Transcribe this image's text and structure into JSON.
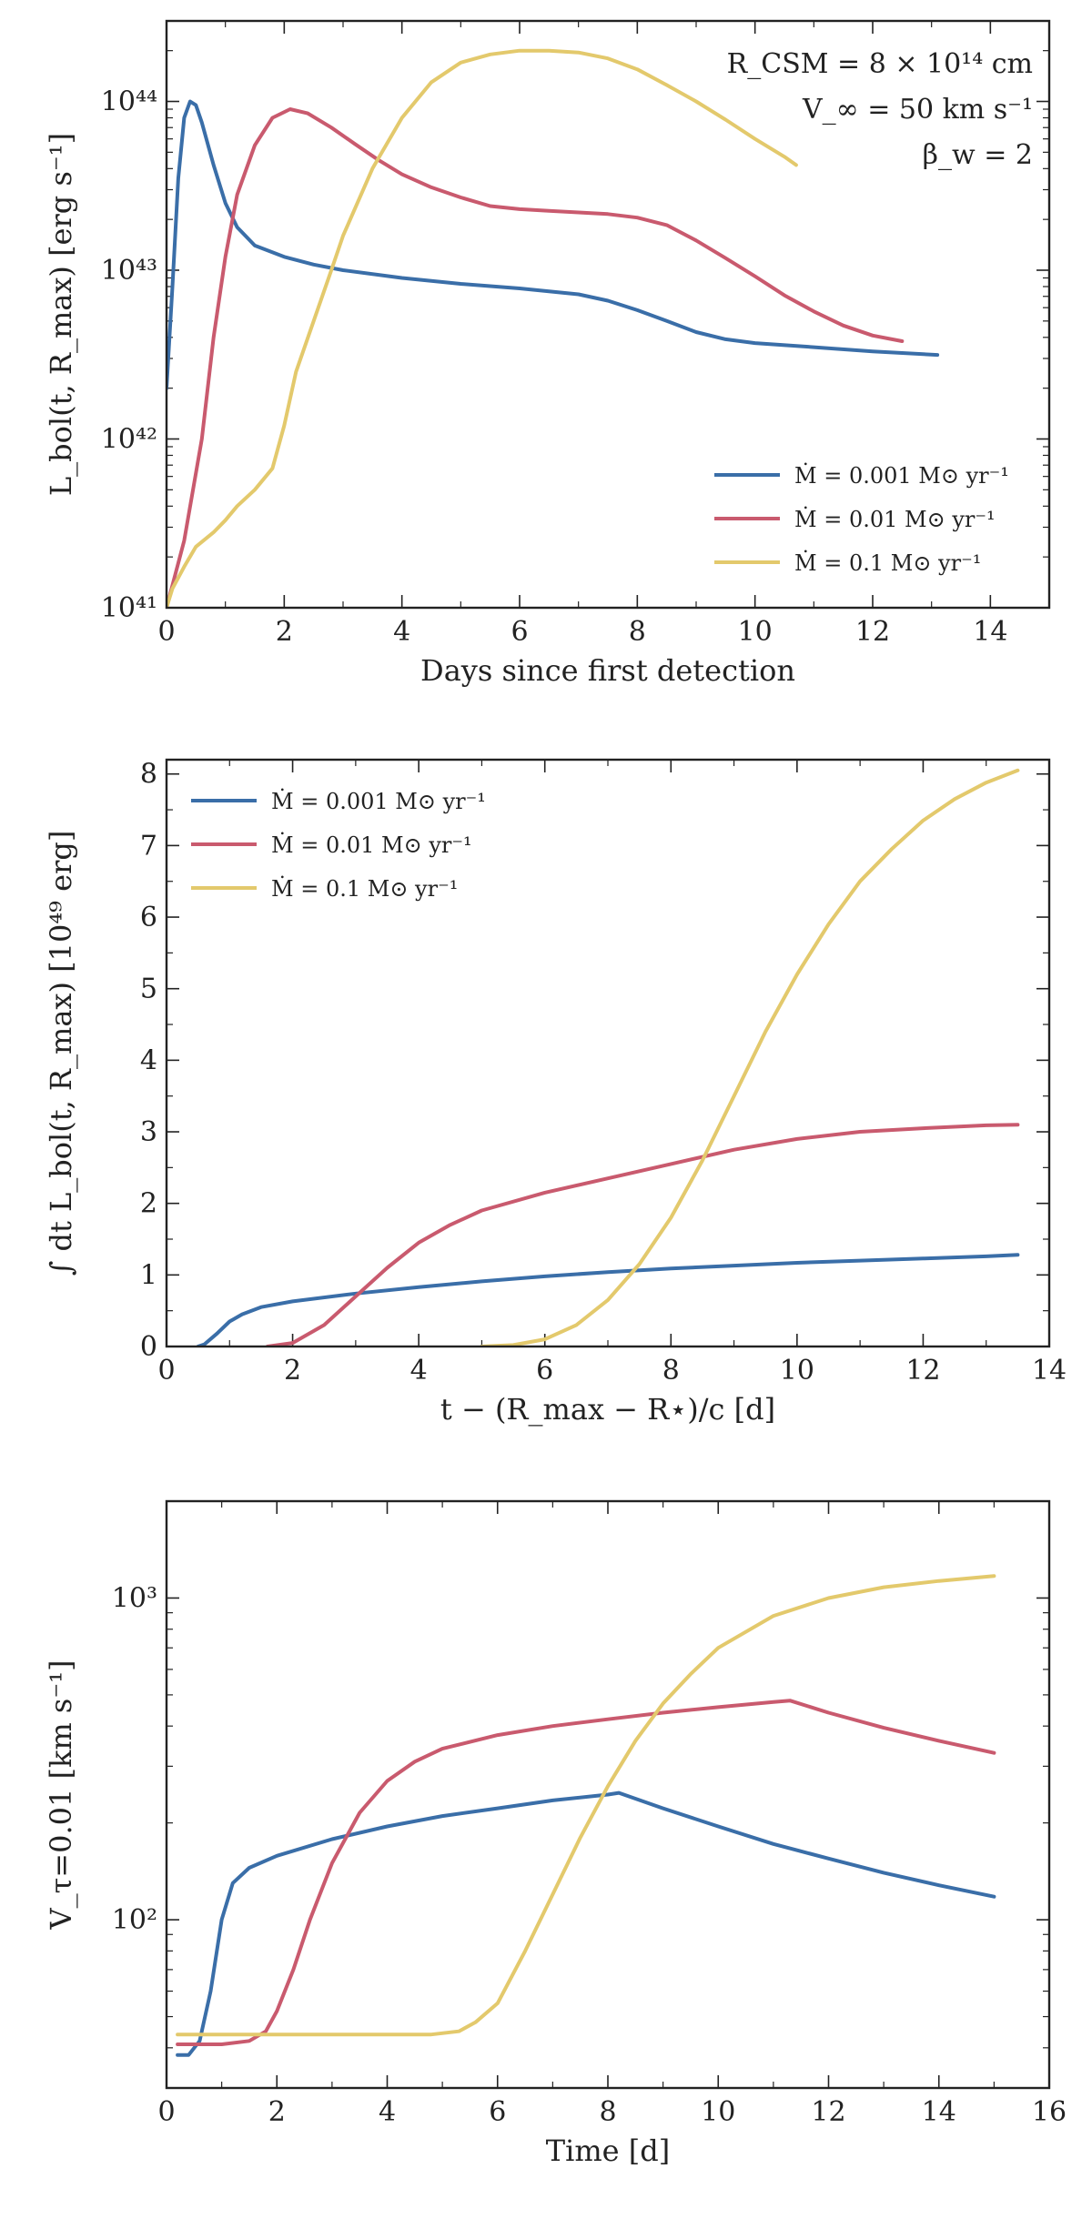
{
  "chart_data": [
    {
      "type": "line",
      "yscale": "log",
      "xlabel": "Days since first detection",
      "ylabel": "L_bol(t, R_max) [erg s⁻¹]",
      "xlim": [
        0,
        15
      ],
      "ylim": [
        1e+41,
        3e+44
      ],
      "xticks": [
        0,
        2,
        4,
        6,
        8,
        10,
        12,
        14
      ],
      "xtick_labels": [
        "0",
        "2",
        "4",
        "6",
        "8",
        "10",
        "12",
        "14"
      ],
      "yticks": [
        1e+41,
        1e+42,
        1e+43,
        1e+44
      ],
      "ytick_labels": [
        "10⁴¹",
        "10⁴²",
        "10⁴³",
        "10⁴⁴"
      ],
      "legend_position": "lower-right",
      "annotations": [
        "R_CSM = 8 × 10¹⁴ cm",
        "V_∞ = 50 km s⁻¹",
        "β_w = 2"
      ],
      "series": [
        {
          "name": "Ṁ = 0.001 M⊙ yr⁻¹",
          "color": "#3a6ea8",
          "x": [
            0,
            0.1,
            0.2,
            0.3,
            0.4,
            0.5,
            0.6,
            0.8,
            1.0,
            1.2,
            1.5,
            2.0,
            2.5,
            3.0,
            4.0,
            5.0,
            6.0,
            7.0,
            7.5,
            8.0,
            8.5,
            9.0,
            9.5,
            10.0,
            11.0,
            12.0,
            13.1
          ],
          "y": [
            2e+42,
            8e+42,
            3.5e+43,
            8e+43,
            1e+44,
            9.5e+43,
            7.5e+43,
            4.2e+43,
            2.5e+43,
            1.8e+43,
            1.4e+43,
            1.2e+43,
            1.08e+43,
            1e+43,
            9e+42,
            8.3e+42,
            7.8e+42,
            7.2e+42,
            6.6e+42,
            5.8e+42,
            5e+42,
            4.3e+42,
            3.9e+42,
            3.7e+42,
            3.5e+42,
            3.3e+42,
            3.15e+42
          ]
        },
        {
          "name": "Ṁ = 0.01 M⊙ yr⁻¹",
          "color": "#c95a6e",
          "x": [
            0,
            0.3,
            0.6,
            0.8,
            1.0,
            1.2,
            1.5,
            1.8,
            2.1,
            2.4,
            2.8,
            3.2,
            3.6,
            4.0,
            4.5,
            5.0,
            5.5,
            6.0,
            6.5,
            7.0,
            7.5,
            8.0,
            8.5,
            9.0,
            9.5,
            10.0,
            10.5,
            11.0,
            11.5,
            12.0,
            12.5
          ],
          "y": [
            1e+41,
            2.5e+41,
            1e+42,
            4e+42,
            1.2e+43,
            2.8e+43,
            5.5e+43,
            8e+43,
            9e+43,
            8.5e+43,
            7e+43,
            5.6e+43,
            4.5e+43,
            3.7e+43,
            3.1e+43,
            2.7e+43,
            2.4e+43,
            2.3e+43,
            2.25e+43,
            2.2e+43,
            2.15e+43,
            2.05e+43,
            1.85e+43,
            1.5e+43,
            1.18e+43,
            9.2e+42,
            7.1e+42,
            5.7e+42,
            4.7e+42,
            4.1e+42,
            3.8e+42
          ]
        },
        {
          "name": "Ṁ = 0.1 M⊙ yr⁻¹",
          "color": "#e3c96c",
          "x": [
            0,
            0.1,
            0.3,
            0.5,
            0.8,
            1.0,
            1.2,
            1.5,
            1.8,
            2.0,
            2.2,
            2.5,
            2.8,
            3.0,
            3.5,
            4.0,
            4.5,
            5.0,
            5.5,
            6.0,
            6.5,
            7.0,
            7.5,
            8.0,
            8.5,
            9.0,
            9.5,
            10.0,
            10.5,
            10.7
          ],
          "y": [
            1e+41,
            1.3e+41,
            1.75e+41,
            2.3e+41,
            2.8e+41,
            3.3e+41,
            4e+41,
            5e+41,
            6.7e+41,
            1.2e+42,
            2.5e+42,
            5e+42,
            1e+43,
            1.6e+43,
            4e+43,
            8e+43,
            1.3e+44,
            1.7e+44,
            1.9e+44,
            2e+44,
            2e+44,
            1.95e+44,
            1.8e+44,
            1.55e+44,
            1.25e+44,
            1e+44,
            7.8e+43,
            6e+43,
            4.7e+43,
            4.2e+43
          ]
        }
      ]
    },
    {
      "type": "line",
      "yscale": "linear",
      "xlabel": "t − (R_max − R⋆)/c [d]",
      "ylabel": "∫ dt L_bol(t, R_max) [10⁴⁹ erg]",
      "xlim": [
        0,
        14
      ],
      "ylim": [
        0,
        8.2
      ],
      "xticks": [
        0,
        2,
        4,
        6,
        8,
        10,
        12,
        14
      ],
      "xtick_labels": [
        "0",
        "2",
        "4",
        "6",
        "8",
        "10",
        "12",
        "14"
      ],
      "yticks": [
        0,
        1,
        2,
        3,
        4,
        5,
        6,
        7,
        8
      ],
      "ytick_labels": [
        "0",
        "1",
        "2",
        "3",
        "4",
        "5",
        "6",
        "7",
        "8"
      ],
      "legend_position": "top-left",
      "series": [
        {
          "name": "Ṁ = 0.001 M⊙ yr⁻¹",
          "color": "#3a6ea8",
          "x": [
            0.5,
            0.6,
            0.8,
            1.0,
            1.2,
            1.5,
            2.0,
            3.0,
            4.0,
            5.0,
            6.0,
            7.0,
            8.0,
            9.0,
            10.0,
            11.0,
            12.0,
            13.0,
            13.5
          ],
          "y": [
            0,
            0.03,
            0.18,
            0.35,
            0.45,
            0.55,
            0.63,
            0.74,
            0.83,
            0.91,
            0.98,
            1.04,
            1.09,
            1.13,
            1.17,
            1.2,
            1.23,
            1.26,
            1.28
          ]
        },
        {
          "name": "Ṁ = 0.01 M⊙ yr⁻¹",
          "color": "#c95a6e",
          "x": [
            1.6,
            2.0,
            2.5,
            3.0,
            3.5,
            4.0,
            4.5,
            5.0,
            6.0,
            7.0,
            8.0,
            9.0,
            10.0,
            11.0,
            12.0,
            13.0,
            13.5
          ],
          "y": [
            0,
            0.05,
            0.3,
            0.7,
            1.1,
            1.45,
            1.7,
            1.9,
            2.15,
            2.35,
            2.55,
            2.75,
            2.9,
            3.0,
            3.05,
            3.09,
            3.1
          ]
        },
        {
          "name": "Ṁ = 0.1 M⊙ yr⁻¹",
          "color": "#e3c96c",
          "x": [
            5.0,
            5.5,
            6.0,
            6.5,
            7.0,
            7.5,
            8.0,
            8.5,
            9.0,
            9.5,
            10.0,
            10.5,
            11.0,
            11.5,
            12.0,
            12.5,
            13.0,
            13.5
          ],
          "y": [
            0,
            0.02,
            0.1,
            0.3,
            0.65,
            1.15,
            1.8,
            2.6,
            3.5,
            4.4,
            5.2,
            5.9,
            6.5,
            6.95,
            7.35,
            7.65,
            7.88,
            8.05
          ]
        }
      ]
    },
    {
      "type": "line",
      "yscale": "log",
      "xlabel": "Time [d]",
      "ylabel": "V_τ=0.01 [km s⁻¹]",
      "xlim": [
        0,
        16
      ],
      "ylim": [
        30,
        2000
      ],
      "xticks": [
        0,
        2,
        4,
        6,
        8,
        10,
        12,
        14,
        16
      ],
      "xtick_labels": [
        "0",
        "2",
        "4",
        "6",
        "8",
        "10",
        "12",
        "14",
        "16"
      ],
      "yticks": [
        100,
        1000
      ],
      "ytick_labels": [
        "10²",
        "10³"
      ],
      "series": [
        {
          "name": "Ṁ = 0.001 M⊙ yr⁻¹",
          "color": "#3a6ea8",
          "x": [
            0.2,
            0.4,
            0.6,
            0.8,
            1.0,
            1.2,
            1.5,
            2.0,
            3.0,
            4.0,
            5.0,
            6.0,
            7.0,
            8.0,
            8.2,
            9.0,
            10.0,
            11.0,
            12.0,
            13.0,
            14.0,
            15.0
          ],
          "y": [
            38,
            38,
            42,
            60,
            100,
            130,
            145,
            158,
            178,
            195,
            210,
            222,
            235,
            245,
            248,
            222,
            195,
            172,
            155,
            140,
            128,
            118
          ]
        },
        {
          "name": "Ṁ = 0.01 M⊙ yr⁻¹",
          "color": "#c95a6e",
          "x": [
            0.2,
            1.0,
            1.5,
            1.8,
            2.0,
            2.3,
            2.6,
            3.0,
            3.5,
            4.0,
            4.5,
            5.0,
            6.0,
            7.0,
            8.0,
            9.0,
            10.0,
            11.0,
            11.3,
            12.0,
            13.0,
            14.0,
            15.0
          ],
          "y": [
            41,
            41,
            42,
            45,
            52,
            70,
            100,
            150,
            215,
            270,
            310,
            340,
            375,
            400,
            420,
            440,
            458,
            475,
            480,
            440,
            395,
            360,
            330
          ]
        },
        {
          "name": "Ṁ = 0.1 M⊙ yr⁻¹",
          "color": "#e3c96c",
          "x": [
            0.2,
            2.0,
            3.0,
            4.0,
            4.8,
            5.3,
            5.6,
            6.0,
            6.5,
            7.0,
            7.5,
            8.0,
            8.5,
            9.0,
            9.5,
            10.0,
            11.0,
            12.0,
            13.0,
            14.0,
            15.0
          ],
          "y": [
            44,
            44,
            44,
            44,
            44,
            45,
            48,
            55,
            80,
            120,
            180,
            260,
            360,
            470,
            580,
            700,
            880,
            1000,
            1080,
            1130,
            1170
          ]
        }
      ]
    }
  ]
}
